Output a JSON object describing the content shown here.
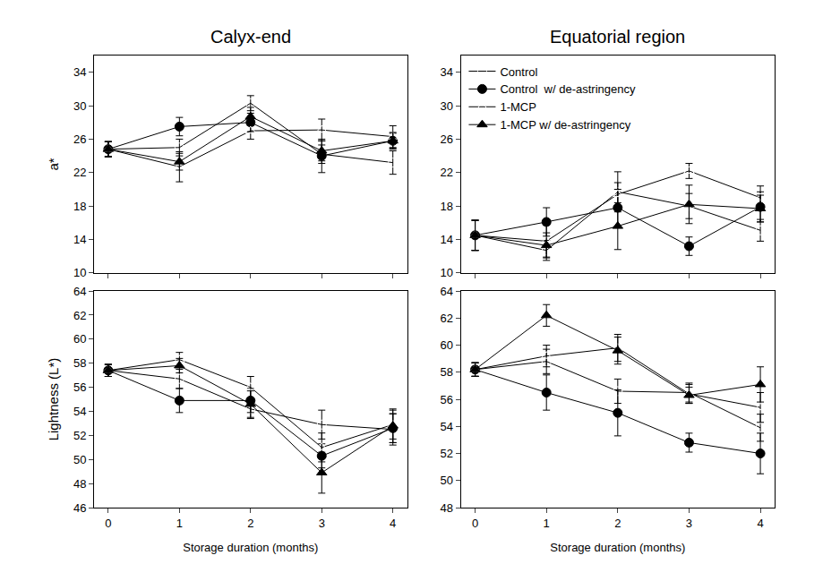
{
  "chart_data": [
    {
      "type": "line",
      "title": "Calyx-end",
      "y_label": "a*",
      "x": [
        0,
        1,
        2,
        3,
        4
      ],
      "xlim": [
        -0.2,
        4.2
      ],
      "xticks": [
        0,
        1,
        2,
        3,
        4
      ],
      "ylim": [
        10,
        36
      ],
      "yticks": [
        10,
        14,
        18,
        22,
        26,
        30,
        34
      ],
      "tick_labels": "y",
      "series": [
        {
          "name": "Control",
          "color": "#000000",
          "marker": "circle-open",
          "values": [
            24.8,
            25.0,
            30.3,
            24.2,
            23.2
          ],
          "error": [
            0.9,
            1.0,
            0.9,
            1.1,
            1.4
          ]
        },
        {
          "name": "Control  w/ de-astringency",
          "color": "#000000",
          "marker": "circle",
          "values": [
            24.8,
            27.5,
            28.0,
            24.0,
            25.8
          ],
          "error": [
            0.9,
            1.1,
            1.1,
            2.0,
            0.9
          ]
        },
        {
          "name": "1-MCP",
          "color": "#000000",
          "marker": "triangle-up-open",
          "values": [
            24.8,
            22.7,
            27.0,
            27.1,
            26.3
          ],
          "error": [
            0.9,
            1.8,
            1.0,
            1.3,
            1.3
          ]
        },
        {
          "name": "1-MCP w/ de-astringency",
          "color": "#000000",
          "marker": "triangle-up",
          "values": [
            24.8,
            23.3,
            28.7,
            24.6,
            25.8
          ],
          "error": [
            0.9,
            1.0,
            1.1,
            1.2,
            1.0
          ]
        }
      ]
    },
    {
      "type": "line",
      "title": "Equatorial region",
      "x": [
        0,
        1,
        2,
        3,
        4
      ],
      "xlim": [
        -0.2,
        4.2
      ],
      "xticks": [
        0,
        1,
        2,
        3,
        4
      ],
      "ylim": [
        10,
        36
      ],
      "yticks": [
        10,
        14,
        18,
        22,
        26,
        30,
        34
      ],
      "tick_labels": "y",
      "legend": "upper left",
      "series": [
        {
          "name": "Control",
          "color": "#000000",
          "marker": "circle-open",
          "values": [
            14.5,
            12.7,
            19.7,
            18.0,
            15.1
          ],
          "error": [
            1.8,
            1.2,
            2.4,
            1.5,
            1.3
          ]
        },
        {
          "name": "Control  w/ de-astringency",
          "color": "#000000",
          "marker": "circle",
          "values": [
            14.5,
            16.1,
            17.8,
            13.2,
            17.9
          ],
          "error": [
            1.8,
            1.7,
            2.2,
            1.1,
            1.8
          ]
        },
        {
          "name": "1-MCP",
          "color": "#000000",
          "marker": "triangle-up-open",
          "values": [
            14.5,
            13.8,
            19.4,
            22.2,
            19.0
          ],
          "error": [
            1.8,
            1.9,
            1.4,
            0.9,
            1.4
          ]
        },
        {
          "name": "1-MCP w/ de-astringency",
          "color": "#000000",
          "marker": "triangle-up",
          "values": [
            14.5,
            13.3,
            15.6,
            18.2,
            17.7
          ],
          "error": [
            1.8,
            1.5,
            2.8,
            2.3,
            1.6
          ]
        }
      ]
    },
    {
      "type": "line",
      "y_label": "Lightness (L*)",
      "x_label": "Storage duration (months)",
      "x": [
        0,
        1,
        2,
        3,
        4
      ],
      "xlim": [
        -0.2,
        4.2
      ],
      "xticks": [
        0,
        1,
        2,
        3,
        4
      ],
      "ylim": [
        46,
        64
      ],
      "yticks": [
        46,
        48,
        50,
        52,
        54,
        56,
        58,
        60,
        62,
        64
      ],
      "series": [
        {
          "name": "Control",
          "color": "#000000",
          "marker": "circle-open",
          "values": [
            57.4,
            56.7,
            54.2,
            52.9,
            52.5
          ],
          "error": [
            0.5,
            0.8,
            0.8,
            1.2,
            1.3
          ]
        },
        {
          "name": "Control  w/ de-astringency",
          "color": "#000000",
          "marker": "circle",
          "values": [
            57.4,
            54.9,
            54.9,
            50.3,
            52.6
          ],
          "error": [
            0.5,
            1.0,
            1.0,
            1.0,
            1.2
          ]
        },
        {
          "name": "1-MCP",
          "color": "#000000",
          "marker": "triangle-up-open",
          "values": [
            57.4,
            58.3,
            56.0,
            51.0,
            52.9
          ],
          "error": [
            0.5,
            0.6,
            0.9,
            1.2,
            1.2
          ]
        },
        {
          "name": "1-MCP w/ de-astringency",
          "color": "#000000",
          "marker": "triangle-up",
          "values": [
            57.4,
            57.8,
            54.6,
            48.9,
            52.8
          ],
          "error": [
            0.5,
            0.6,
            1.1,
            1.7,
            1.4
          ]
        }
      ]
    },
    {
      "type": "line",
      "x_label": "Storage duration (months)",
      "x": [
        0,
        1,
        2,
        3,
        4
      ],
      "xlim": [
        -0.2,
        4.2
      ],
      "xticks": [
        0,
        1,
        2,
        3,
        4
      ],
      "ylim": [
        48,
        64
      ],
      "yticks": [
        48,
        50,
        52,
        54,
        56,
        58,
        60,
        62,
        64
      ],
      "series": [
        {
          "name": "Control",
          "color": "#000000",
          "marker": "circle-open",
          "values": [
            58.2,
            58.8,
            56.6,
            56.5,
            53.9
          ],
          "error": [
            0.5,
            0.9,
            0.9,
            0.7,
            1.0
          ]
        },
        {
          "name": "Control  w/ de-astringency",
          "color": "#000000",
          "marker": "circle",
          "values": [
            58.2,
            56.5,
            55.0,
            52.8,
            52.0
          ],
          "error": [
            0.5,
            1.3,
            1.7,
            0.7,
            1.5
          ]
        },
        {
          "name": "1-MCP",
          "color": "#000000",
          "marker": "triangle-up-open",
          "values": [
            58.2,
            59.2,
            59.8,
            56.4,
            55.4
          ],
          "error": [
            0.5,
            0.8,
            1.0,
            0.7,
            1.1
          ]
        },
        {
          "name": "1-MCP w/ de-astringency",
          "color": "#000000",
          "marker": "triangle-up",
          "values": [
            58.2,
            62.2,
            59.6,
            56.3,
            57.1
          ],
          "error": [
            0.5,
            0.8,
            1.0,
            0.6,
            1.3
          ]
        }
      ]
    }
  ]
}
